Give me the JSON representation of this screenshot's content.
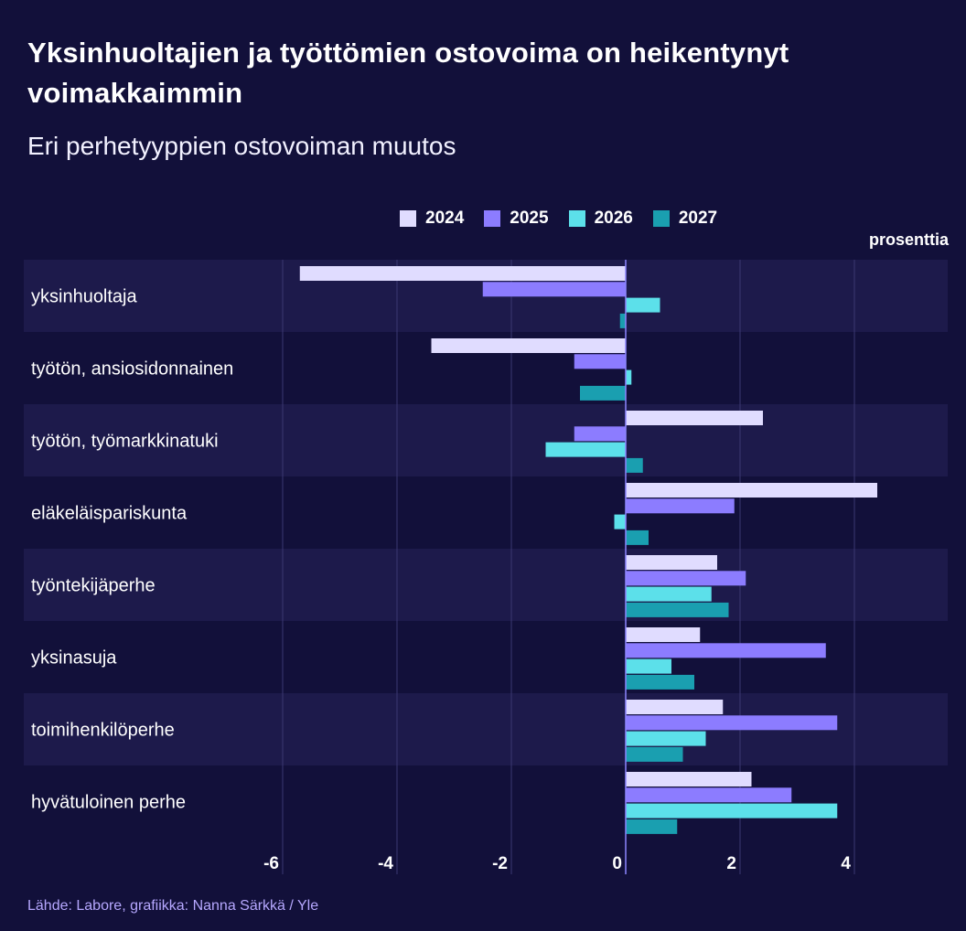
{
  "title": "Yksinhuoltajien ja työttömien ostovoima on heikentynyt voimakkaimmin",
  "subtitle": "Eri perhetyyppien ostovoiman muutos",
  "unit_label": "prosenttia",
  "source": "Lähde: Labore, grafiikka: Nanna Särkkä / Yle",
  "colors": {
    "background": "#12103a",
    "band": "#1d1a4b",
    "grid": "#3a3872",
    "zero_line": "#8d86ff"
  },
  "chart_data": {
    "type": "bar",
    "orientation": "horizontal",
    "categories": [
      "yksinhuoltaja",
      "työtön, ansiosidonnainen",
      "työtön, työmarkkinatuki",
      "eläkeläispariskunta",
      "työntekijäperhe",
      "yksinasuja",
      "toimihenkilöperhe",
      "hyvätuloinen perhe"
    ],
    "series": [
      {
        "name": "2024",
        "color": "#e0dcff",
        "values": [
          -5.7,
          -3.4,
          2.4,
          4.4,
          1.6,
          1.3,
          1.7,
          2.2
        ]
      },
      {
        "name": "2025",
        "color": "#8c7cff",
        "values": [
          -2.5,
          -0.9,
          -0.9,
          1.9,
          2.1,
          3.5,
          3.7,
          2.9
        ]
      },
      {
        "name": "2026",
        "color": "#5ce0ea",
        "values": [
          0.6,
          0.1,
          -1.4,
          -0.2,
          1.5,
          0.8,
          1.4,
          3.7
        ]
      },
      {
        "name": "2027",
        "color": "#1a9fb0",
        "values": [
          -0.1,
          -0.8,
          0.3,
          0.4,
          1.8,
          1.2,
          1.0,
          0.9
        ]
      }
    ],
    "xlim": [
      -6.4,
      5.6
    ],
    "xticks": [
      -6,
      -4,
      -2,
      0,
      2,
      4
    ],
    "xtick_labels": [
      "-6",
      "-4",
      "-2",
      "0",
      "2",
      "4"
    ],
    "grid": true,
    "legend": "top"
  }
}
